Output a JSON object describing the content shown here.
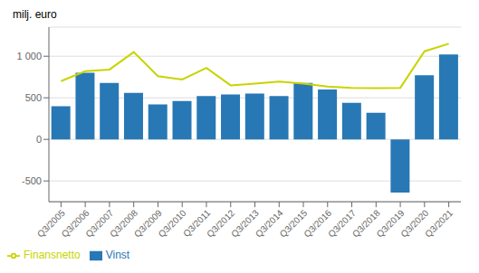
{
  "chart_data": {
    "type": "bar",
    "ylabel": "milj. euro",
    "categories": [
      "Q3/2005",
      "Q3/2006",
      "Q3/2007",
      "Q3/2008",
      "Q3/2009",
      "Q3/2010",
      "Q3/2011",
      "Q3/2012",
      "Q3/2013",
      "Q3/2014",
      "Q3/2015",
      "Q3/2016",
      "Q3/2017",
      "Q3/2018",
      "Q3/2019",
      "Q3/2020",
      "Q3/2021"
    ],
    "series": [
      {
        "name": "Vinst",
        "type": "bar",
        "color": "#2878b5",
        "values": [
          400,
          800,
          680,
          560,
          420,
          460,
          520,
          540,
          550,
          520,
          680,
          600,
          440,
          320,
          -640,
          770,
          1020
        ]
      },
      {
        "name": "Finansnetto",
        "type": "line",
        "color": "#c8d400",
        "values": [
          700,
          820,
          840,
          1050,
          760,
          720,
          860,
          650,
          670,
          695,
          670,
          635,
          620,
          615,
          620,
          1060,
          1150
        ]
      }
    ],
    "ylim": [
      -750,
      1350
    ],
    "yticks": [
      -500,
      0,
      500,
      {
        "value": 1000,
        "label": "1 000"
      }
    ],
    "grid": true,
    "legend": "bottom"
  }
}
